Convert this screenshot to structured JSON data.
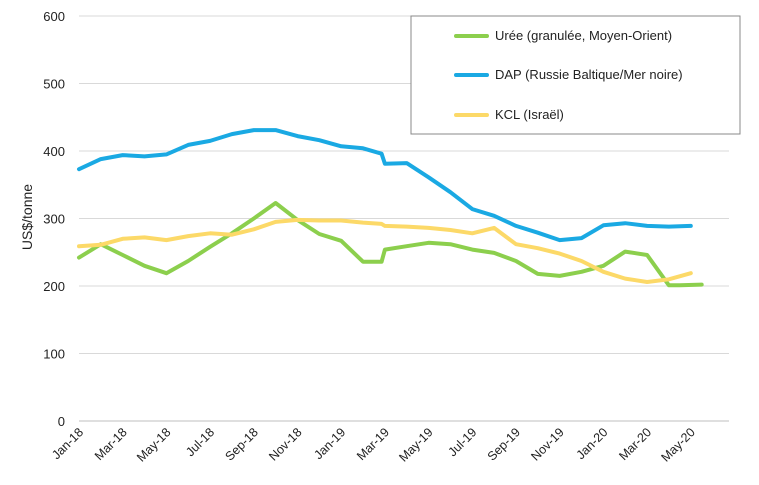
{
  "chart_data": {
    "type": "line",
    "title": "",
    "xlabel": "",
    "ylabel": "US$/tonne",
    "ylim": [
      0,
      600
    ],
    "yticks": [
      0,
      100,
      200,
      300,
      400,
      500,
      600
    ],
    "grid": true,
    "legend_position": "top-right",
    "x_tick_labels": [
      "Jan-18",
      "Mar-18",
      "May-18",
      "Jul-18",
      "Sep-18",
      "Nov-18",
      "Jan-19",
      "Mar-19",
      "May-19",
      "Jul-19",
      "Sep-19",
      "Nov-19",
      "Jan-20",
      "Mar-20",
      "May-20"
    ],
    "x_tick_index": [
      0,
      2,
      4,
      6,
      8,
      10,
      12,
      14,
      16,
      18,
      20,
      22,
      24,
      26,
      28
    ],
    "x_range": [
      0,
      29.75
    ],
    "series": [
      {
        "name": "Urée (granulée, Moyen-Orient)",
        "color": "#8ccf4d",
        "x": [
          0,
          1,
          2,
          3,
          4,
          5,
          6,
          7,
          8,
          9,
          10,
          11,
          12,
          13,
          13.85,
          14.0,
          15,
          16,
          17,
          18,
          19,
          20,
          21,
          22,
          23,
          24,
          25,
          26,
          27,
          27.5,
          28.5
        ],
        "values": [
          242,
          262,
          246,
          230,
          219,
          237,
          258,
          278,
          300,
          323,
          298,
          277,
          267,
          236,
          236,
          254,
          259,
          264,
          262,
          254,
          249,
          237,
          218,
          215,
          221,
          230,
          251,
          246,
          201,
          201,
          202
        ]
      },
      {
        "name": "DAP (Russie Baltique/Mer noire)",
        "color": "#1aa9e3",
        "x": [
          0,
          1,
          2,
          3,
          4,
          5,
          6,
          7,
          8,
          9,
          10,
          11,
          12,
          13,
          13.85,
          14.0,
          15,
          16,
          17,
          18,
          19,
          20,
          21,
          22,
          23,
          24,
          25,
          26,
          27,
          28
        ],
        "values": [
          373,
          388,
          394,
          392,
          395,
          409,
          415,
          425,
          431,
          431,
          422,
          416,
          407,
          404,
          396,
          381,
          382,
          361,
          339,
          314,
          304,
          289,
          279,
          268,
          271,
          290,
          293,
          289,
          288,
          289
        ]
      },
      {
        "name": "KCL (Israël)",
        "color": "#fcd968",
        "x": [
          0,
          1,
          2,
          3,
          4,
          5,
          6,
          7,
          8,
          9,
          10,
          11,
          12,
          13,
          13.85,
          14.0,
          15,
          16,
          17,
          18,
          19,
          20,
          21,
          22,
          23,
          24,
          25,
          26,
          27,
          28
        ],
        "values": [
          259,
          261,
          270,
          272,
          268,
          274,
          278,
          276,
          284,
          295,
          298,
          297,
          297,
          294,
          292,
          289,
          288,
          286,
          283,
          278,
          286,
          262,
          256,
          248,
          237,
          221,
          211,
          206,
          210,
          219
        ]
      }
    ]
  }
}
